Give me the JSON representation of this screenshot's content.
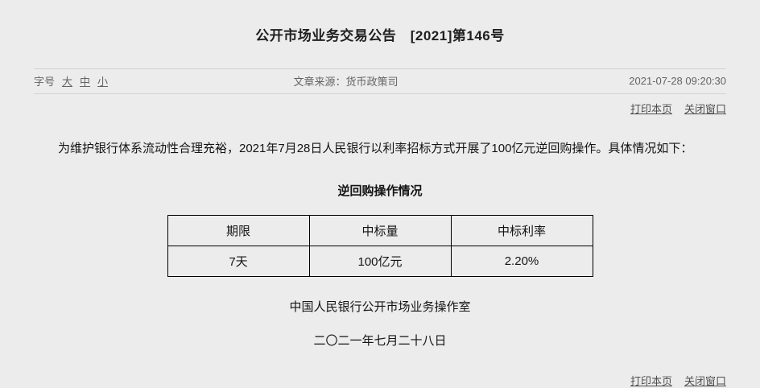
{
  "header": {
    "title": "公开市场业务交易公告　[2021]第146号"
  },
  "meta": {
    "font_size_label": "字号",
    "font_size_options": [
      {
        "label": "大"
      },
      {
        "label": "中"
      },
      {
        "label": "小"
      }
    ],
    "source": "文章来源：货币政策司",
    "datetime": "2021-07-28 09:20:30"
  },
  "actions": {
    "print_label": "打印本页",
    "close_label": "关闭窗口"
  },
  "body": {
    "paragraph": "为维护银行体系流动性合理充裕，2021年7月28日人民银行以利率招标方式开展了100亿元逆回购操作。具体情况如下：",
    "table_title": "逆回购操作情况",
    "table": {
      "headers": [
        "期限",
        "中标量",
        "中标利率"
      ],
      "rows": [
        [
          "7天",
          "100亿元",
          "2.20%"
        ]
      ]
    },
    "signature": "中国人民银行公开市场业务操作室",
    "date_cn": "二〇二一年七月二十八日"
  },
  "colors": {
    "page_background": "#ececec",
    "text": "#141414",
    "muted_text": "#636363",
    "link": "#4f4f4f",
    "table_border": "#000000",
    "divider": "#d2d2d2"
  }
}
